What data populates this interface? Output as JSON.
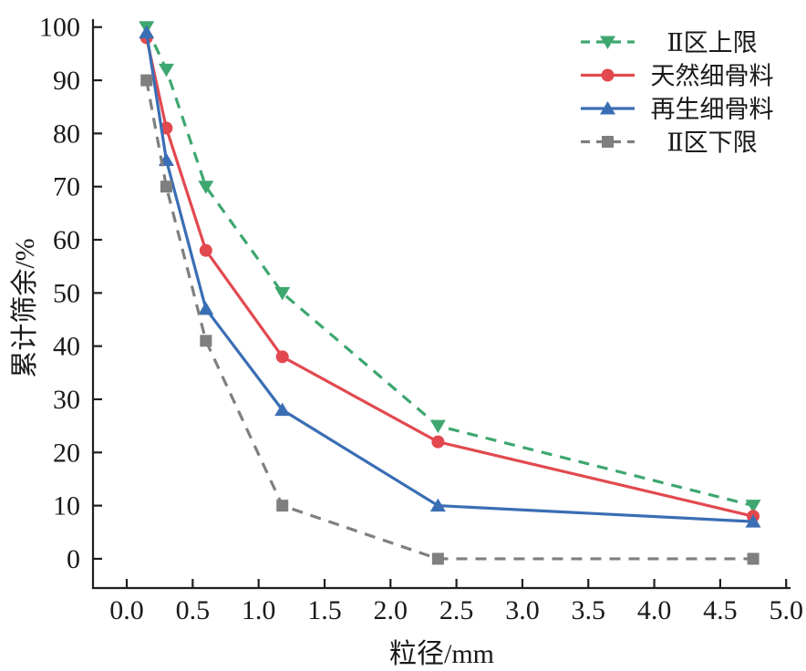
{
  "chart_data": {
    "type": "line",
    "title": "",
    "xlabel": "粒径/mm",
    "ylabel": "累计筛余/%",
    "x": [
      0.15,
      0.3,
      0.6,
      1.18,
      2.36,
      4.75
    ],
    "series": [
      {
        "name": "Ⅱ区上限",
        "values": [
          100,
          92,
          70,
          50,
          25,
          10
        ],
        "color": "#3ea770",
        "line": "dashed",
        "marker": "triangle-down"
      },
      {
        "name": "天然细骨料",
        "values": [
          98,
          81,
          58,
          38,
          22,
          8
        ],
        "color": "#e2494f",
        "line": "solid",
        "marker": "circle"
      },
      {
        "name": "再生细骨料",
        "values": [
          99,
          75,
          47,
          28,
          10,
          7
        ],
        "color": "#3a6eb4",
        "line": "solid",
        "marker": "triangle-up"
      },
      {
        "name": "Ⅱ区下限",
        "values": [
          90,
          70,
          41,
          10,
          0,
          0
        ],
        "color": "#7f7f7f",
        "line": "dashed",
        "marker": "square"
      }
    ],
    "x_ticks": [
      0.0,
      0.5,
      1.0,
      1.5,
      2.0,
      2.5,
      3.0,
      3.5,
      4.0,
      4.5,
      5.0
    ],
    "x_tick_labels": [
      "0.0",
      "0.5",
      "1.0",
      "1.5",
      "2.0",
      "2.5",
      "3.0",
      "3.5",
      "4.0",
      "4.5",
      "5.0"
    ],
    "y_ticks": [
      0,
      10,
      20,
      30,
      40,
      50,
      60,
      70,
      80,
      90,
      100
    ],
    "y_tick_labels": [
      "0",
      "10",
      "20",
      "30",
      "40",
      "50",
      "60",
      "70",
      "80",
      "90",
      "100"
    ],
    "xlim": [
      -0.256,
      5.033
    ],
    "ylim": [
      -5.5,
      101.5
    ],
    "grid": false,
    "legend_position": "upper-right",
    "axis_color": "#1f1f1f"
  }
}
